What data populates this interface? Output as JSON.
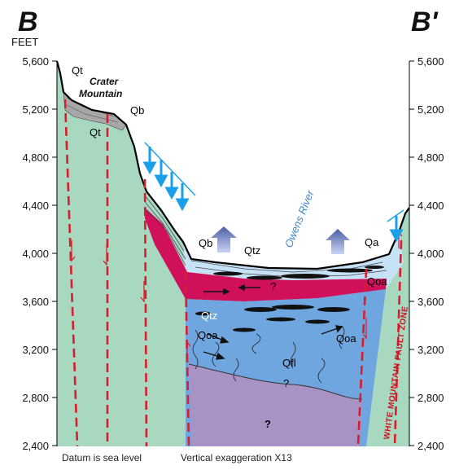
{
  "sections": {
    "left": "B",
    "right": "B'"
  },
  "axis": {
    "unit": "FEET",
    "ticks": [
      "5,600",
      "5,200",
      "4,800",
      "4,400",
      "4,000",
      "3,600",
      "3,200",
      "2,800",
      "2,400"
    ]
  },
  "labels": {
    "crater_line1": "Crater",
    "crater_line2": "Mountain",
    "river": "Owens River",
    "fault_zone": "WHITE MOUNTAIN FAULT ZONE",
    "unknown_upper": "?",
    "unknown_lower": "?",
    "unknown_small": "?"
  },
  "units": {
    "qt_top": "Qt",
    "qt_bottom": "Qt",
    "qb_top": "Qb",
    "qb_mid": "Qb",
    "qtz_upper": "Qtz",
    "qtz_lower": "Qtz",
    "qa": "Qa",
    "qoa_right": "Qoa",
    "qoa_left": "Qoa",
    "qoa_center": "Qoa",
    "qfl": "Qfl"
  },
  "footer": {
    "datum": "Datum is sea level",
    "exaggeration": "Vertical exaggeration X13"
  },
  "colors": {
    "bedrock": "#a8d8c0",
    "basin_fill": "#6fa6e0",
    "deep_basement": "#a993c4",
    "upper_alluvium": "#c7e2f5",
    "red_clay": "#d0105a",
    "basalt": "#a7a7a7",
    "fault_red": "#d81e2c",
    "arrow_blue": "#1a9fe8"
  }
}
